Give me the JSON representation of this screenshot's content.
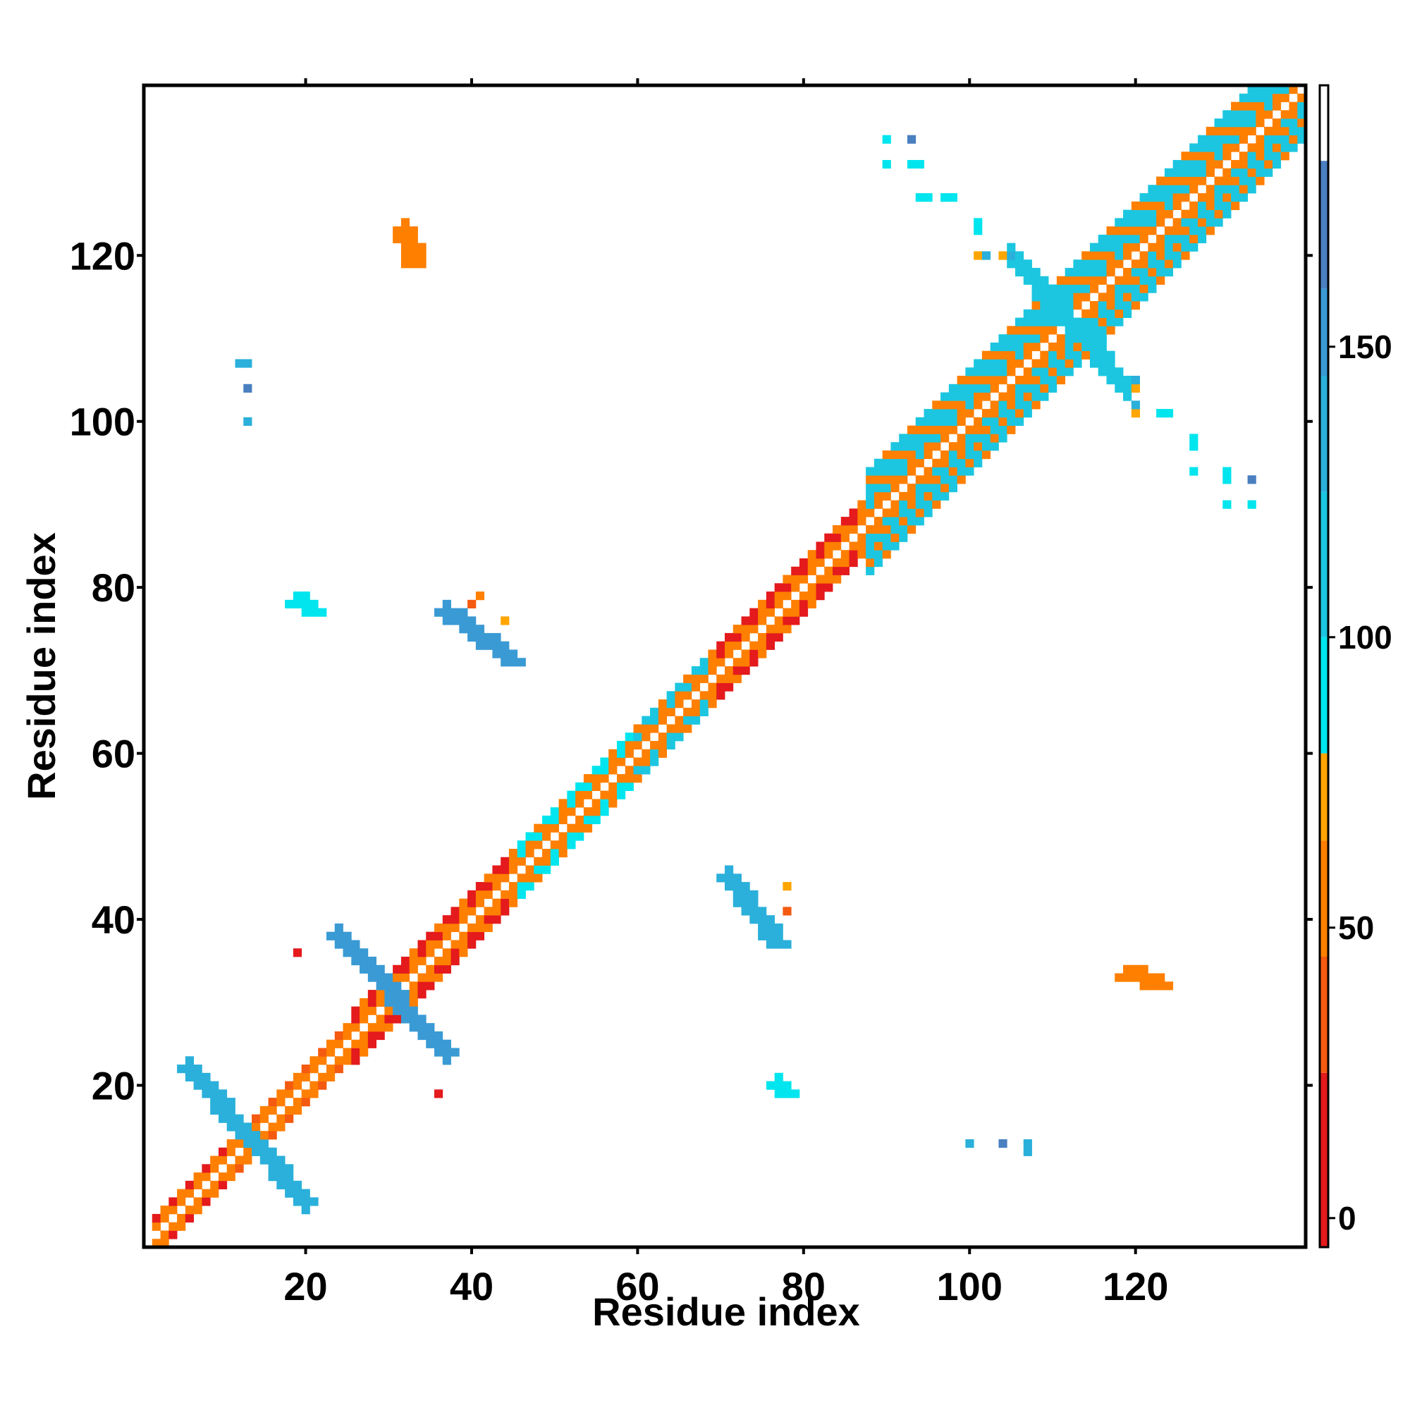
{
  "chart_data": {
    "type": "heatmap",
    "xlabel": "Residue index",
    "ylabel": "Residue index",
    "xlim": [
      1,
      140
    ],
    "ylim": [
      1,
      140
    ],
    "x_ticks": [
      20,
      40,
      60,
      80,
      100,
      120
    ],
    "y_ticks": [
      20,
      40,
      60,
      80,
      100,
      120
    ],
    "grid": false,
    "colorbar": {
      "range": [
        -5,
        195
      ],
      "ticks": [
        0,
        50,
        100,
        150
      ],
      "bands": [
        {
          "from": -5,
          "to": 25,
          "color": "#e41a1c"
        },
        {
          "from": 25,
          "to": 45,
          "color": "#f45a10"
        },
        {
          "from": 45,
          "to": 65,
          "color": "#ff7f00"
        },
        {
          "from": 65,
          "to": 80,
          "color": "#ffa500"
        },
        {
          "from": 80,
          "to": 100,
          "color": "#00e5ee"
        },
        {
          "from": 100,
          "to": 125,
          "color": "#1cc6e0"
        },
        {
          "from": 125,
          "to": 145,
          "color": "#2ab0da"
        },
        {
          "from": 145,
          "to": 160,
          "color": "#3a9ad4"
        },
        {
          "from": 160,
          "to": 182,
          "color": "#4a7fc0"
        },
        {
          "from": 182,
          "to": 195,
          "color": "#ffffff"
        }
      ]
    },
    "diagonal": {
      "inner_color": "#ff7f00",
      "segments": [
        {
          "from": 2,
          "to": 12,
          "halfwidth": 2,
          "edge_color": "#e41a1c"
        },
        {
          "from": 12,
          "to": 26,
          "halfwidth": 2,
          "edge_color": "#f45a10"
        },
        {
          "from": 26,
          "to": 46,
          "halfwidth": 3,
          "edge_color": "#e41a1c"
        },
        {
          "from": 46,
          "to": 60,
          "halfwidth": 3,
          "edge_color": "#00e5ee"
        },
        {
          "from": 60,
          "to": 70,
          "halfwidth": 3,
          "edge_color": "#1cc6e0"
        },
        {
          "from": 70,
          "to": 88,
          "halfwidth": 3,
          "edge_color": "#e41a1c"
        },
        {
          "from": 88,
          "to": 140,
          "halfwidth": 6,
          "edge_color": "#1cc6e0"
        }
      ]
    },
    "antidiagonal_features": [
      {
        "center": [
          13,
          13
        ],
        "extent": [
          [
            6,
            22
          ],
          [
            20,
            6
          ]
        ],
        "color": "#2ab0da"
      },
      {
        "center": [
          30,
          30
        ],
        "extent": [
          [
            24,
            38
          ],
          [
            37,
            24
          ]
        ],
        "color": "#3a9ad4"
      },
      {
        "center": [
          112,
          112
        ],
        "extent": [
          [
            105,
            120
          ],
          [
            119,
            104
          ]
        ],
        "color": "#1cc6e0"
      }
    ],
    "offdiagonal_blocks": [
      {
        "x": [
          37,
          45
        ],
        "y": [
          71,
          77
        ],
        "color": "#3a9ad4"
      },
      {
        "x": [
          71,
          77
        ],
        "y": [
          37,
          45
        ],
        "color": "#2ab0da"
      },
      {
        "x": [
          19,
          21
        ],
        "y": [
          77,
          78
        ],
        "color": "#00e5ee"
      },
      {
        "x": [
          77,
          78
        ],
        "y": [
          19,
          20
        ],
        "color": "#00e5ee"
      },
      {
        "x": [
          32,
          33
        ],
        "y": [
          119,
          123
        ],
        "color": "#ff7f00"
      },
      {
        "x": [
          119,
          123
        ],
        "y": [
          32,
          33
        ],
        "color": "#ff7f00"
      }
    ],
    "scattered_points": [
      {
        "x": 12,
        "y": 107,
        "color": "#2ab0da"
      },
      {
        "x": 13,
        "y": 107,
        "color": "#2ab0da"
      },
      {
        "x": 13,
        "y": 104,
        "color": "#4a7fc0"
      },
      {
        "x": 13,
        "y": 100,
        "color": "#2ab0da"
      },
      {
        "x": 19,
        "y": 36,
        "color": "#e41a1c"
      },
      {
        "x": 36,
        "y": 19,
        "color": "#e41a1c"
      },
      {
        "x": 40,
        "y": 78,
        "color": "#f45a10"
      },
      {
        "x": 41,
        "y": 79,
        "color": "#ff7f00"
      },
      {
        "x": 44,
        "y": 76,
        "color": "#ffa500"
      },
      {
        "x": 78,
        "y": 41,
        "color": "#f45a10"
      },
      {
        "x": 78,
        "y": 44,
        "color": "#ffa500"
      },
      {
        "x": 100,
        "y": 13,
        "color": "#2ab0da"
      },
      {
        "x": 104,
        "y": 13,
        "color": "#4a7fc0"
      },
      {
        "x": 107,
        "y": 12,
        "color": "#2ab0da"
      },
      {
        "x": 107,
        "y": 13,
        "color": "#2ab0da"
      },
      {
        "x": 90,
        "y": 134,
        "color": "#00e5ee"
      },
      {
        "x": 93,
        "y": 134,
        "color": "#4a7fc0"
      },
      {
        "x": 90,
        "y": 131,
        "color": "#00e5ee"
      },
      {
        "x": 93,
        "y": 131,
        "color": "#00e5ee"
      },
      {
        "x": 94,
        "y": 131,
        "color": "#00e5ee"
      },
      {
        "x": 94,
        "y": 127,
        "color": "#00e5ee"
      },
      {
        "x": 95,
        "y": 127,
        "color": "#00e5ee"
      },
      {
        "x": 97,
        "y": 127,
        "color": "#00e5ee"
      },
      {
        "x": 98,
        "y": 127,
        "color": "#00e5ee"
      },
      {
        "x": 101,
        "y": 124,
        "color": "#00e5ee"
      },
      {
        "x": 101,
        "y": 123,
        "color": "#00e5ee"
      },
      {
        "x": 101,
        "y": 120,
        "color": "#ffa500"
      },
      {
        "x": 102,
        "y": 120,
        "color": "#2ab0da"
      },
      {
        "x": 104,
        "y": 120,
        "color": "#ffa500"
      },
      {
        "x": 105,
        "y": 120,
        "color": "#2ab0da"
      },
      {
        "x": 134,
        "y": 90,
        "color": "#00e5ee"
      },
      {
        "x": 134,
        "y": 93,
        "color": "#4a7fc0"
      },
      {
        "x": 131,
        "y": 90,
        "color": "#00e5ee"
      },
      {
        "x": 131,
        "y": 93,
        "color": "#00e5ee"
      },
      {
        "x": 131,
        "y": 94,
        "color": "#00e5ee"
      },
      {
        "x": 127,
        "y": 94,
        "color": "#00e5ee"
      },
      {
        "x": 127,
        "y": 97,
        "color": "#00e5ee"
      },
      {
        "x": 127,
        "y": 98,
        "color": "#00e5ee"
      },
      {
        "x": 124,
        "y": 101,
        "color": "#00e5ee"
      },
      {
        "x": 123,
        "y": 101,
        "color": "#00e5ee"
      },
      {
        "x": 120,
        "y": 101,
        "color": "#ffa500"
      },
      {
        "x": 120,
        "y": 102,
        "color": "#2ab0da"
      },
      {
        "x": 120,
        "y": 104,
        "color": "#ffa500"
      },
      {
        "x": 120,
        "y": 105,
        "color": "#2ab0da"
      }
    ]
  }
}
